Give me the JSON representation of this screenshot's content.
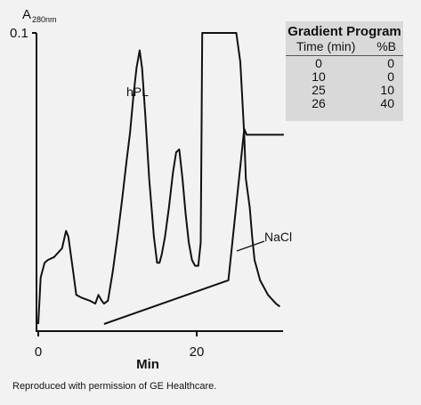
{
  "chart_data": {
    "type": "line",
    "ylabel_main": "A",
    "ylabel_sub": "280nm",
    "ytick": "0.1",
    "xlabel": "Min",
    "xticks": [
      "0",
      "20"
    ],
    "xlim": [
      0,
      31
    ],
    "ylim": [
      0,
      0.1
    ],
    "series": [
      {
        "x": [
          0.0,
          0.3,
          0.8,
          1.2,
          2.0,
          3.0,
          3.5,
          3.8,
          4.1,
          4.4,
          4.8,
          5.5,
          6.5,
          7.2,
          7.6,
          8.0,
          8.3,
          8.8,
          9.4,
          10.0,
          10.6,
          11.1,
          11.6,
          12.0,
          12.4,
          12.8,
          13.1,
          13.5,
          14.0,
          14.6,
          15.0,
          15.3,
          15.6,
          16.0,
          16.5,
          17.0,
          17.4,
          17.8,
          18.2,
          18.6,
          19.0,
          19.4,
          19.8,
          20.2,
          20.5,
          20.6,
          20.7,
          21.0,
          22.0,
          23.5,
          25.0,
          25.5,
          26.0,
          26.2,
          26.7,
          27.0,
          27.3,
          27.5,
          28.0,
          29.0,
          30.0,
          30.5
        ],
        "y": [
          0.0,
          0.016,
          0.021,
          0.022,
          0.023,
          0.026,
          0.032,
          0.03,
          0.024,
          0.018,
          0.01,
          0.009,
          0.008,
          0.007,
          0.01,
          0.008,
          0.007,
          0.008,
          0.018,
          0.03,
          0.043,
          0.055,
          0.066,
          0.078,
          0.088,
          0.094,
          0.088,
          0.072,
          0.05,
          0.03,
          0.021,
          0.021,
          0.024,
          0.03,
          0.04,
          0.052,
          0.059,
          0.06,
          0.05,
          0.038,
          0.028,
          0.022,
          0.02,
          0.02,
          0.028,
          0.06,
          0.1,
          0.1,
          0.1,
          0.1,
          0.1,
          0.09,
          0.065,
          0.05,
          0.04,
          0.03,
          0.022,
          0.02,
          0.015,
          0.01,
          0.007,
          0.006
        ]
      },
      {
        "x": [
          8.3,
          24.0,
          26.0,
          26.3,
          31.0
        ],
        "y": [
          0.0,
          0.015,
          0.067,
          0.065,
          0.065
        ]
      }
    ],
    "annotations": [
      "hPL",
      "NaCl"
    ]
  },
  "gradient_program": {
    "title": "Gradient Program",
    "col_time": "Time (min)",
    "col_b": "%B",
    "rows": [
      [
        "0",
        "0"
      ],
      [
        "10",
        "0"
      ],
      [
        "25",
        "10"
      ],
      [
        "26",
        "40"
      ]
    ]
  },
  "credit": "Reproduced with permission of GE Healthcare."
}
